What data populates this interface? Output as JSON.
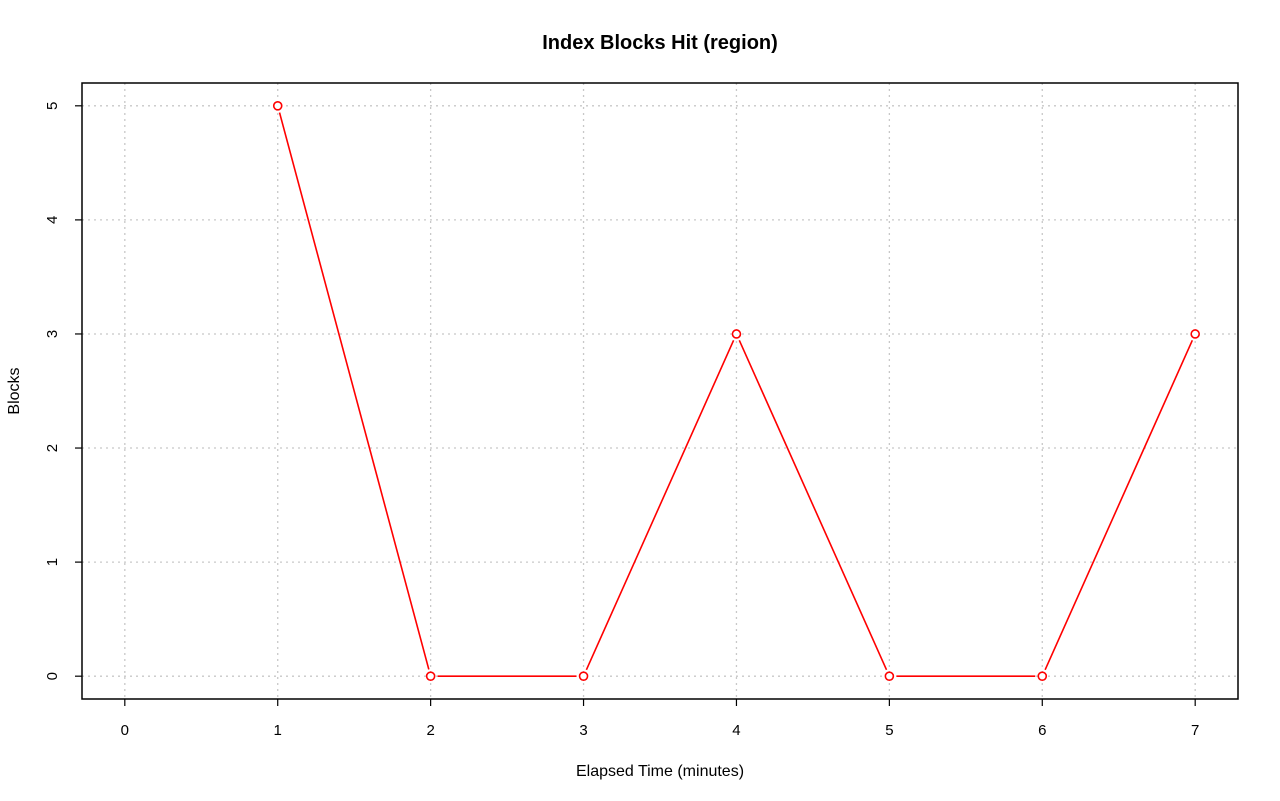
{
  "chart_data": {
    "type": "line",
    "title": "Index Blocks Hit (region)",
    "xlabel": "Elapsed Time (minutes)",
    "ylabel": "Blocks",
    "x_ticks": [
      0,
      1,
      2,
      3,
      4,
      5,
      6,
      7
    ],
    "y_ticks": [
      0,
      1,
      2,
      3,
      4,
      5
    ],
    "xlim": [
      -0.28,
      7.28
    ],
    "ylim": [
      -0.2,
      5.2
    ],
    "grid": true,
    "series": [
      {
        "color": "#ff0000",
        "marker": "open-circle",
        "x": [
          1,
          2,
          3,
          4,
          5,
          6,
          7
        ],
        "y": [
          5,
          0,
          0,
          3,
          0,
          0,
          3
        ]
      }
    ]
  }
}
